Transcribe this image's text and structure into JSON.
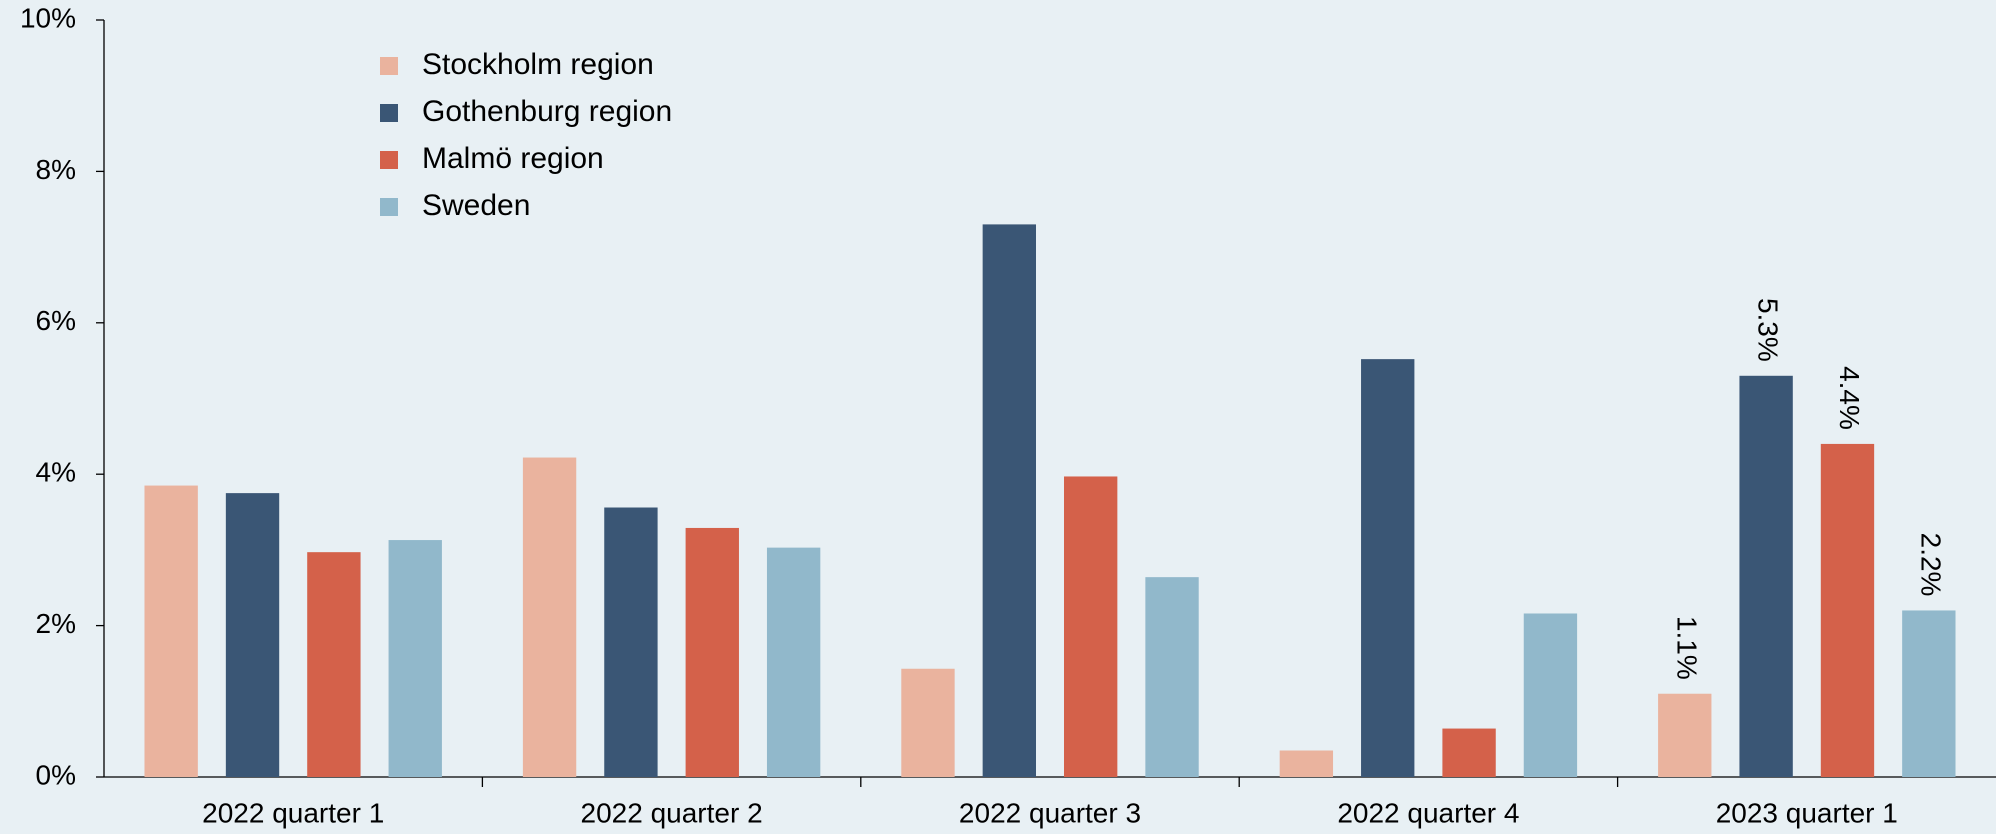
{
  "chart_data": {
    "type": "bar",
    "categories": [
      "2022 quarter 1",
      "2022 quarter 2",
      "2022 quarter 3",
      "2022 quarter 4",
      "2023 quarter 1"
    ],
    "series": [
      {
        "name": "Stockholm region",
        "color": "#eab39e",
        "values": [
          3.85,
          4.22,
          1.43,
          0.35,
          1.1
        ],
        "value_labels": [
          null,
          null,
          null,
          null,
          "1.1%"
        ]
      },
      {
        "name": "Gothenburg region",
        "color": "#3a5675",
        "values": [
          3.75,
          3.56,
          7.3,
          5.52,
          5.3
        ],
        "value_labels": [
          null,
          null,
          null,
          null,
          "5.3%"
        ]
      },
      {
        "name": "Malmö region",
        "color": "#d4614a",
        "values": [
          2.97,
          3.29,
          3.97,
          0.64,
          4.4
        ],
        "value_labels": [
          null,
          null,
          null,
          null,
          "4.4%"
        ]
      },
      {
        "name": "Sweden",
        "color": "#91b8cb",
        "values": [
          3.13,
          3.03,
          2.64,
          2.16,
          2.2
        ],
        "value_labels": [
          null,
          null,
          null,
          null,
          "2.2%"
        ]
      }
    ],
    "ylim": [
      0,
      10
    ],
    "yticks": [
      {
        "value": 0,
        "label": "0%"
      },
      {
        "value": 2,
        "label": "2%"
      },
      {
        "value": 4,
        "label": "4%"
      },
      {
        "value": 6,
        "label": "6%"
      },
      {
        "value": 8,
        "label": "8%"
      },
      {
        "value": 10,
        "label": "10%"
      }
    ],
    "grid": false,
    "legend": "upper-left"
  }
}
